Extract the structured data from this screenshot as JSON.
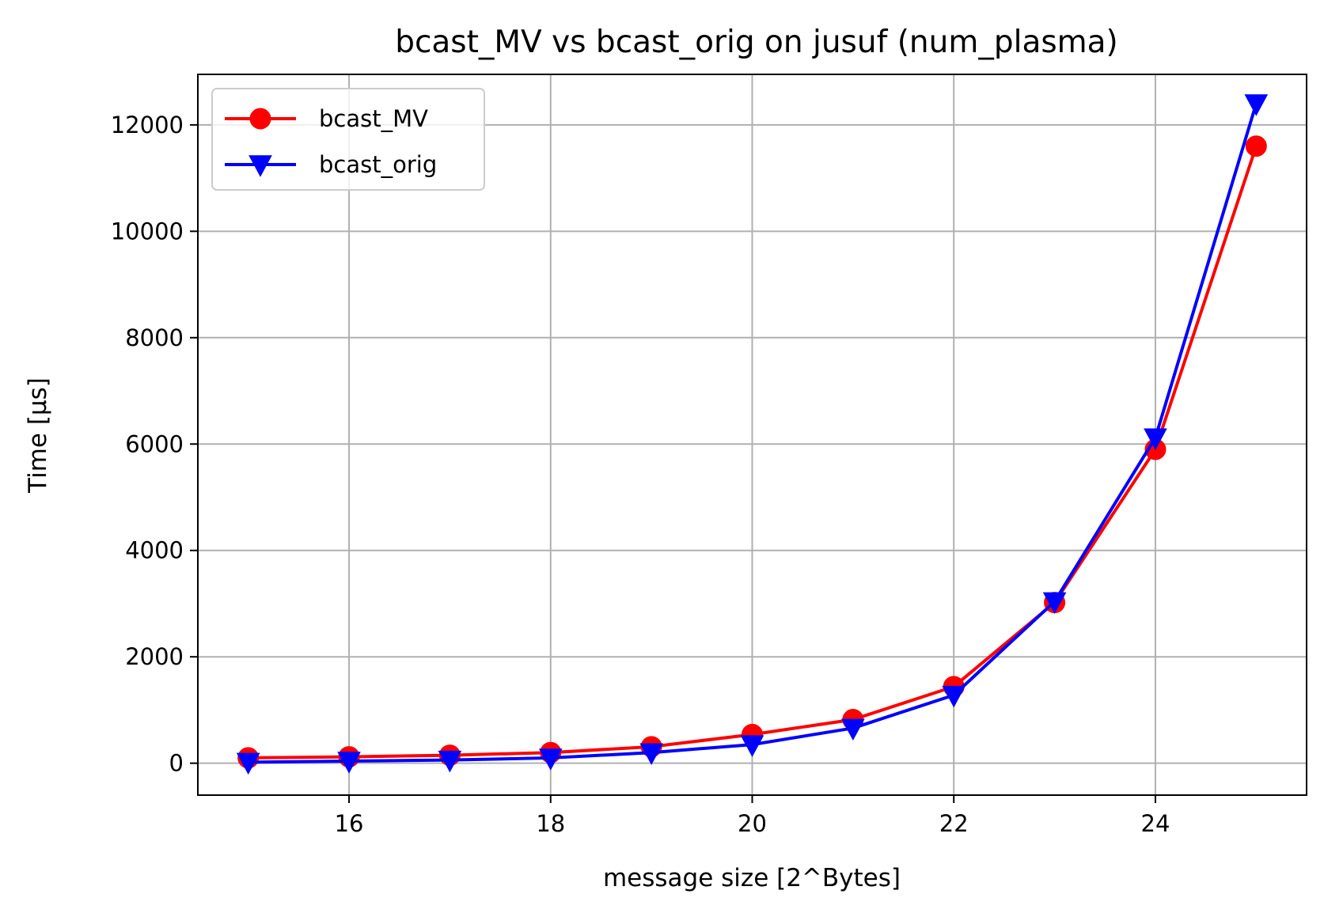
{
  "chart_data": {
    "type": "line",
    "title": "bcast_MV vs bcast_orig on jusuf (num_plasma)",
    "xlabel": "message size [2^Bytes]",
    "ylabel": "Time [µs]",
    "x": [
      15,
      16,
      17,
      18,
      19,
      20,
      21,
      22,
      23,
      24,
      25
    ],
    "xlim": [
      14.5,
      25.5
    ],
    "ylim": [
      -600,
      12950
    ],
    "xticks": [
      16,
      18,
      20,
      22,
      24
    ],
    "yticks": [
      0,
      2000,
      4000,
      6000,
      8000,
      10000,
      12000
    ],
    "grid": true,
    "legend_position": "top-left",
    "series": [
      {
        "name": "bcast_MV",
        "color": "#ff0000",
        "marker": "circle",
        "values": [
          100,
          120,
          150,
          200,
          310,
          540,
          820,
          1440,
          3020,
          5900,
          11600
        ]
      },
      {
        "name": "bcast_orig",
        "color": "#0000ff",
        "marker": "triangle-down",
        "values": [
          20,
          40,
          60,
          100,
          200,
          350,
          660,
          1280,
          3040,
          6120,
          12400
        ]
      }
    ]
  }
}
